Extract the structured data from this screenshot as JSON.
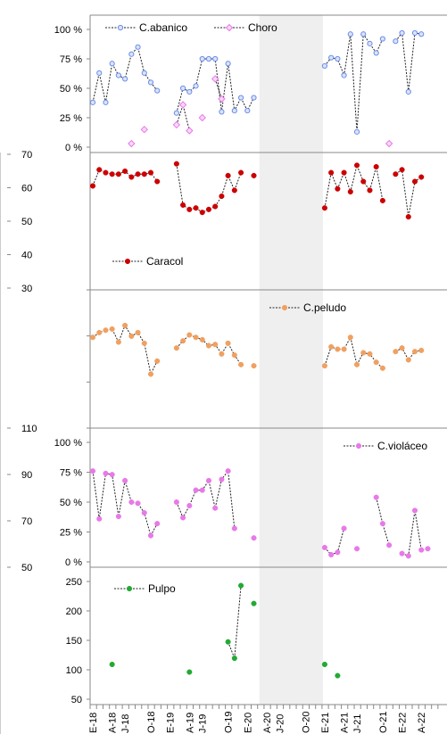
{
  "chart_data": {
    "type": "line",
    "x_categories": [
      "E-18",
      "F-18",
      "M-18",
      "A-18",
      "My-18",
      "J-18",
      "Jl-18",
      "Ag-18",
      "S-18",
      "O-18",
      "N-18",
      "D-18",
      "E-19",
      "F-19",
      "M-19",
      "A-19",
      "My-19",
      "J-19",
      "Jl-19",
      "Ag-19",
      "S-19",
      "O-19",
      "N-19",
      "D-19",
      "E-20",
      "F-20",
      "M-20",
      "A-20",
      "My-20",
      "J-20",
      "Jl-20",
      "Ag-20",
      "S-20",
      "O-20",
      "N-20",
      "D-20",
      "E-21",
      "F-21",
      "M-21",
      "A-21",
      "My-21",
      "J-21",
      "Jl-21",
      "Ag-21",
      "S-21",
      "O-21",
      "N-21",
      "D-21",
      "E-22",
      "F-22",
      "M-22",
      "A-22",
      "My-22",
      "J-22"
    ],
    "x_tick_labels": [
      "E-18",
      "A-18",
      "J-18",
      "O-18",
      "E-19",
      "A-19",
      "J-19",
      "O-19",
      "E-20",
      "A-20",
      "J-20",
      "O-20",
      "E-21",
      "A-21",
      "J-21",
      "O-21",
      "E-22",
      "A-22"
    ],
    "shaded_period": {
      "from": "M-20",
      "to": "D-20"
    },
    "panels": [
      {
        "id": "abanico_choro",
        "y_axis": "left",
        "y_ticks": [
          "0 %",
          "25 %",
          "50 %",
          "75 %",
          "100 %"
        ],
        "ylim": [
          0,
          100
        ],
        "series": [
          {
            "name": "C.abanico",
            "color": "#6b8ee8",
            "marker": "circle-open",
            "values": [
              38,
              63,
              38,
              71,
              61,
              58,
              79,
              85,
              63,
              55,
              48,
              null,
              null,
              29,
              50,
              47,
              52,
              75,
              75,
              75,
              30,
              71,
              31,
              42,
              31,
              42,
              null,
              null,
              null,
              null,
              null,
              null,
              null,
              null,
              null,
              null,
              69,
              76,
              75,
              61,
              96,
              13,
              96,
              88,
              80,
              92,
              null,
              90,
              97,
              47,
              97,
              96,
              null,
              null
            ]
          },
          {
            "name": "Choro",
            "color": "#e879e8",
            "marker": "diamond-open",
            "values": [
              null,
              null,
              null,
              null,
              null,
              null,
              3,
              null,
              15,
              null,
              null,
              null,
              null,
              19,
              36,
              14,
              null,
              25,
              null,
              58,
              41,
              null,
              null,
              null,
              null,
              null,
              null,
              null,
              null,
              null,
              null,
              null,
              null,
              null,
              null,
              null,
              null,
              null,
              null,
              null,
              null,
              null,
              null,
              null,
              null,
              null,
              3,
              null,
              null,
              null,
              null,
              null,
              null,
              null
            ]
          }
        ]
      },
      {
        "id": "caracol",
        "y_axis": "right",
        "y_ticks": [
          "30",
          "40",
          "50",
          "60",
          "70"
        ],
        "ylim": [
          30,
          70
        ],
        "series": [
          {
            "name": "Caracol",
            "color": "#cc0000",
            "marker": "circle-filled",
            "values": [
              63.5,
              69,
              68,
              67.5,
              67.5,
              68.5,
              66.5,
              67.5,
              67.5,
              68,
              65,
              null,
              null,
              71,
              57,
              55.5,
              56,
              54.5,
              55.5,
              56.5,
              60,
              67,
              62,
              68,
              null,
              67,
              null,
              null,
              null,
              null,
              null,
              null,
              null,
              null,
              null,
              null,
              56,
              68,
              62.5,
              68,
              61.5,
              70.5,
              65,
              62,
              70,
              58.5,
              null,
              67.5,
              69,
              53,
              65,
              66.5,
              null,
              null
            ]
          }
        ]
      },
      {
        "id": "cpeludo",
        "y_axis": "left",
        "y_ticks": [],
        "ylim": [
          0,
          100
        ],
        "series": [
          {
            "name": "C.peludo",
            "color": "#f0a060",
            "marker": "circle-filled",
            "values": [
              72,
              76,
              78,
              79,
              68,
              82,
              73,
              76,
              67,
              41,
              52,
              null,
              null,
              63,
              69,
              74,
              72,
              70,
              65,
              66,
              58,
              67,
              57,
              49,
              null,
              48,
              null,
              null,
              null,
              null,
              null,
              null,
              null,
              null,
              null,
              null,
              48,
              64,
              62,
              62,
              72,
              49,
              59,
              58,
              51,
              46,
              null,
              60,
              63,
              53,
              60,
              61,
              null,
              null
            ]
          }
        ]
      },
      {
        "id": "cviolaceo",
        "y_axis": "both",
        "y_ticks": [
          "0 %",
          "25 %",
          "50 %",
          "75 %",
          "100 %"
        ],
        "ylim": [
          0,
          100
        ],
        "series": [
          {
            "name": "C.violáceo",
            "color": "#e879e8",
            "marker": "circle-filled",
            "values": [
              76,
              36,
              74,
              73,
              38,
              68,
              50,
              49,
              41,
              22,
              32,
              null,
              null,
              50,
              37,
              47,
              60,
              60,
              68,
              45,
              69,
              76,
              28,
              null,
              null,
              20,
              null,
              null,
              null,
              null,
              null,
              null,
              null,
              null,
              null,
              null,
              12,
              6,
              8,
              28,
              null,
              11,
              null,
              null,
              54,
              32,
              14,
              null,
              7,
              5,
              43,
              10,
              11,
              null
            ]
          }
        ]
      },
      {
        "id": "pulpo",
        "y_axis": "left",
        "y_ticks": [
          "50",
          "100",
          "150",
          "200",
          "250"
        ],
        "ylim": [
          50,
          280
        ],
        "series": [
          {
            "name": "Pulpo",
            "color": "#22aa33",
            "marker": "circle-filled",
            "values": [
              null,
              null,
              null,
              null,
              null,
              null,
              null,
              null,
              null,
              null,
              null,
              null,
              null,
              null,
              null,
              null,
              null,
              null,
              null,
              null,
              null,
              null,
              null,
              null,
              null,
              null,
              null,
              null,
              null,
              null,
              null,
              null,
              null,
              null,
              null,
              null,
              null,
              null,
              null,
              null,
              null,
              null,
              null,
              null,
              null,
              null,
              null,
              null,
              null,
              null,
              null,
              null,
              null,
              null
            ]
          }
        ]
      }
    ],
    "left_axis_stub_ticks": [
      "110",
      "90",
      "70",
      "50"
    ],
    "pulpo_points": [
      {
        "x": "A-18",
        "y": 118
      },
      {
        "x": "A-19",
        "y": 103
      },
      {
        "x": "O-19",
        "y": 162
      },
      {
        "x": "N-19",
        "y": 130
      },
      {
        "x": "D-19",
        "y": 272
      },
      {
        "x": "F-20",
        "y": 237
      },
      {
        "x": "E-21",
        "y": 118
      },
      {
        "x": "M-21",
        "y": 96
      }
    ]
  }
}
